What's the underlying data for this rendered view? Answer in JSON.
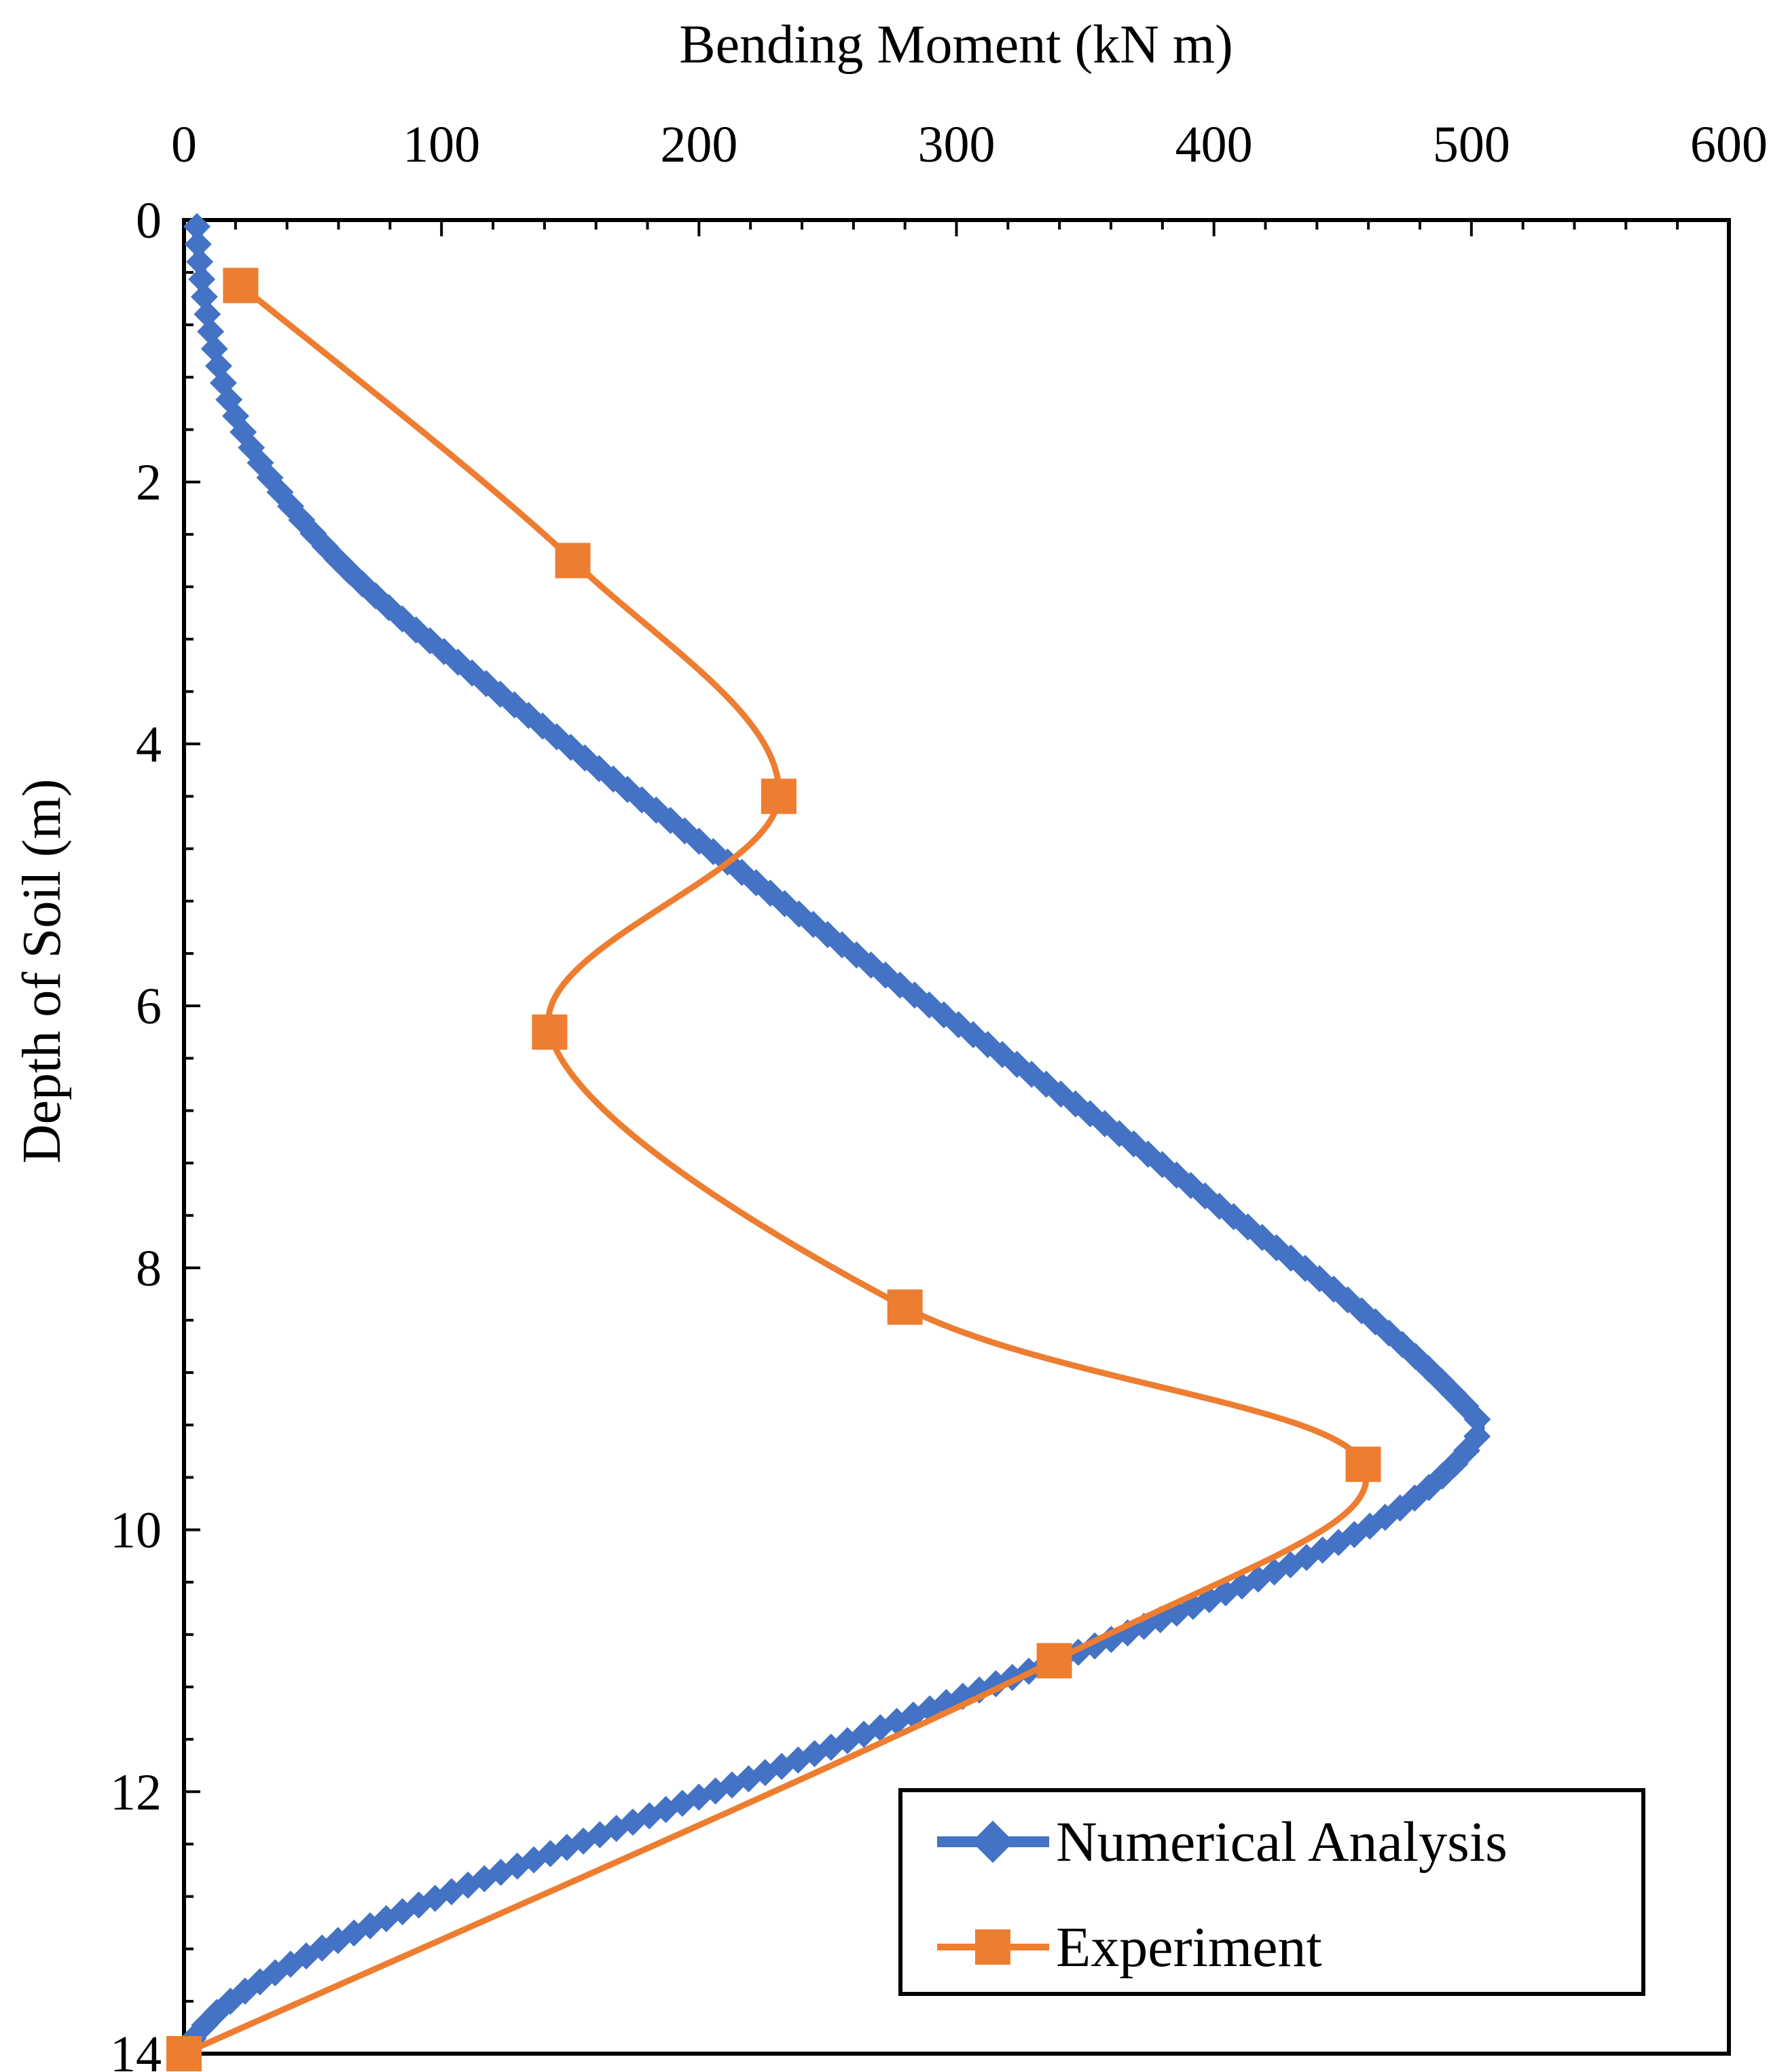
{
  "chart_data": {
    "type": "line",
    "title": "",
    "xlabel": "Bending Moment (kN m)",
    "ylabel": "Depth of Soil (m)",
    "xlim": [
      0,
      600
    ],
    "ylim": [
      0,
      14
    ],
    "y_inverted": true,
    "x_axis_position": "top",
    "x_ticks": [
      "0",
      "100",
      "200",
      "300",
      "400",
      "500",
      "600"
    ],
    "y_ticks": [
      "0",
      "2",
      "4",
      "6",
      "8",
      "10",
      "12",
      "14"
    ],
    "grid": false,
    "legend_position": "bottom-right",
    "series": [
      {
        "name": "Numerical Analysis",
        "color": "#4472C4",
        "marker": "diamond",
        "points": [
          [
            5,
            0.05
          ],
          [
            6,
            0.3
          ],
          [
            8,
            0.6
          ],
          [
            12,
            1.0
          ],
          [
            18,
            1.4
          ],
          [
            28,
            1.8
          ],
          [
            42,
            2.2
          ],
          [
            60,
            2.6
          ],
          [
            82,
            3.0
          ],
          [
            108,
            3.4
          ],
          [
            135,
            3.8
          ],
          [
            162,
            4.2
          ],
          [
            190,
            4.6
          ],
          [
            218,
            5.0
          ],
          [
            246,
            5.4
          ],
          [
            275,
            5.8
          ],
          [
            305,
            6.2
          ],
          [
            335,
            6.6
          ],
          [
            365,
            7.0
          ],
          [
            393,
            7.4
          ],
          [
            421,
            7.8
          ],
          [
            449,
            8.2
          ],
          [
            474,
            8.6
          ],
          [
            495,
            9.0
          ],
          [
            503,
            9.2
          ],
          [
            498,
            9.4
          ],
          [
            482,
            9.7
          ],
          [
            458,
            10.0
          ],
          [
            426,
            10.3
          ],
          [
            390,
            10.6
          ],
          [
            352,
            10.9
          ],
          [
            312,
            11.2
          ],
          [
            272,
            11.5
          ],
          [
            233,
            11.8
          ],
          [
            192,
            12.1
          ],
          [
            152,
            12.4
          ],
          [
            112,
            12.7
          ],
          [
            75,
            13.0
          ],
          [
            43,
            13.3
          ],
          [
            18,
            13.6
          ],
          [
            5,
            13.85
          ],
          [
            0,
            14.0
          ]
        ]
      },
      {
        "name": "Experiment",
        "color": "#ED7D31",
        "marker": "square",
        "points": [
          [
            22,
            0.5
          ],
          [
            151,
            2.6
          ],
          [
            231,
            4.4
          ],
          [
            142,
            6.2
          ],
          [
            280,
            8.3
          ],
          [
            458,
            9.5
          ],
          [
            338,
            11.0
          ],
          [
            0,
            14.0
          ]
        ]
      }
    ]
  }
}
